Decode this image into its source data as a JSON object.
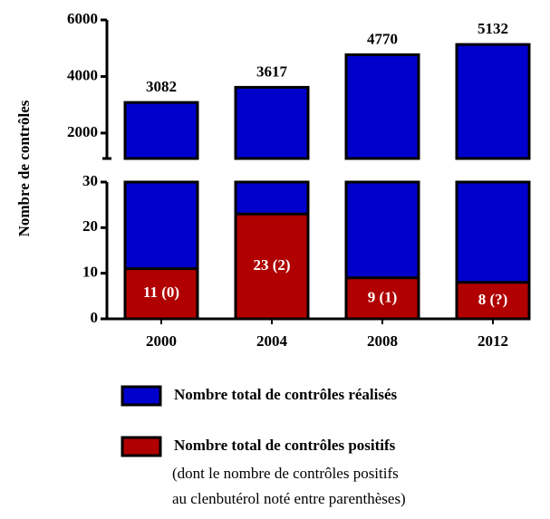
{
  "chart_data": {
    "type": "bar",
    "ylabel": "Nombre de contrôles",
    "categories": [
      "2000",
      "2004",
      "2008",
      "2012"
    ],
    "series": [
      {
        "name": "Nombre total de contrôles réalisés",
        "color": "#0000cc",
        "values": [
          3082,
          3617,
          4770,
          5132
        ]
      },
      {
        "name": "Nombre total de contrôles positifs",
        "color": "#b00000",
        "values": [
          11,
          23,
          9,
          8
        ],
        "value_labels": [
          "11 (0)",
          "23 (2)",
          "9 (1)",
          "8 (?)"
        ]
      }
    ],
    "legend_note": [
      "(dont le nombre de contrôles positifs",
      "au clenbutérol noté entre parenthèses)"
    ],
    "ylim": [
      0,
      30
    ],
    "yticks": [
      0,
      10,
      20,
      30
    ],
    "ylim_upper": [
      1100,
      6000
    ],
    "yticks_upper": [
      2000,
      4000,
      6000
    ]
  }
}
